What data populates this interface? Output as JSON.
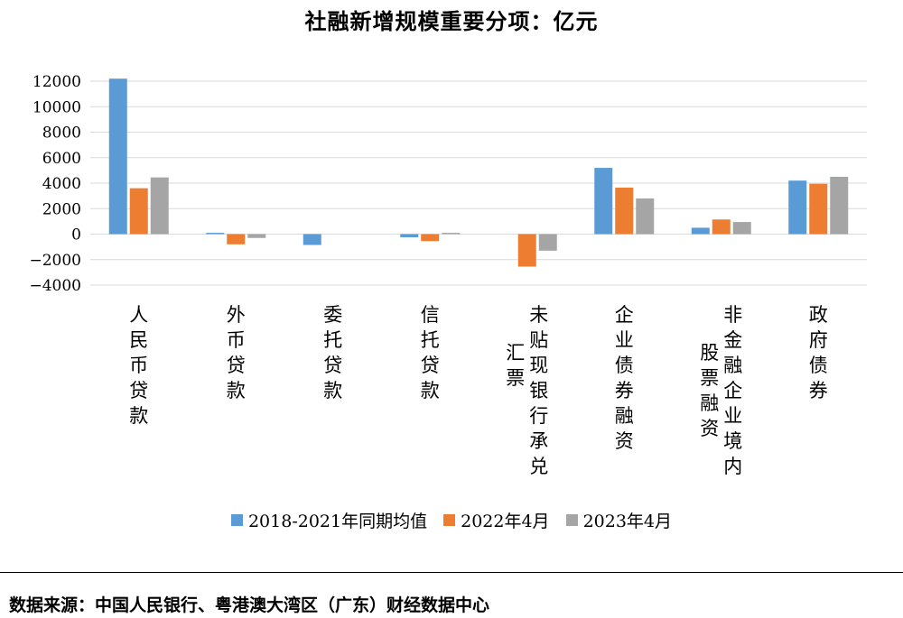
{
  "chart_data": {
    "type": "bar",
    "title": "社融新增规模重要分项：亿元",
    "categories": [
      "人民币贷款",
      "外币贷款",
      "委托贷款",
      "信托贷款",
      "未贴现银行承兑汇票",
      "企业债券融资",
      "非金融企业境内股票融资",
      "政府债券"
    ],
    "category_label_columns": [
      [
        "人民币贷款"
      ],
      [
        "外币贷款"
      ],
      [
        "委托贷款"
      ],
      [
        "信托贷款"
      ],
      [
        "未贴现银行承兑",
        "汇票"
      ],
      [
        "企业债券融资"
      ],
      [
        "非金融企业境内",
        "股票融资"
      ],
      [
        "政府债券"
      ]
    ],
    "series": [
      {
        "name": "2018-2021年同期均值",
        "color": "#5B9BD5",
        "values": [
          12200,
          100,
          -850,
          -250,
          0,
          5200,
          500,
          4200
        ]
      },
      {
        "name": "2022年4月",
        "color": "#ED7D31",
        "values": [
          3600,
          -800,
          0,
          -550,
          -2550,
          3650,
          1150,
          3950
        ]
      },
      {
        "name": "2023年4月",
        "color": "#A5A5A5",
        "values": [
          4450,
          -300,
          0,
          100,
          -1300,
          2800,
          950,
          4500
        ]
      }
    ],
    "ylim": [
      -4000,
      12000
    ],
    "yticks": [
      12000,
      10000,
      8000,
      6000,
      4000,
      2000,
      0,
      -2000,
      -4000
    ],
    "ytick_labels": [
      "12000",
      "10000",
      "8000",
      "6000",
      "4000",
      "2000",
      "0",
      "−2000",
      "−4000"
    ],
    "grid": true,
    "legend_position": "bottom",
    "xlabel": "",
    "ylabel": ""
  },
  "source": "数据来源：中国人民银行、粤港澳大湾区（广东）财经数据中心"
}
